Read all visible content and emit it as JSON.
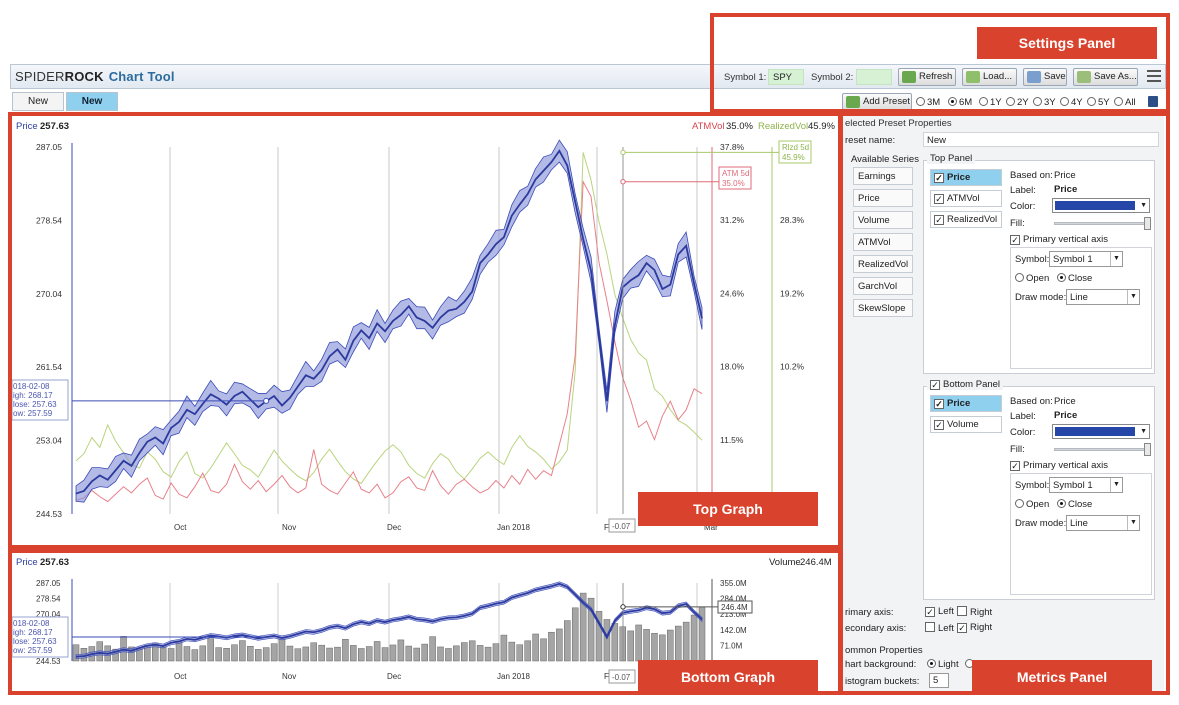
{
  "app": {
    "brand_part1": "SPIDER",
    "brand_part2": "ROCK",
    "brand_part3": "Chart Tool"
  },
  "tabs": [
    {
      "label": "New",
      "active": false
    },
    {
      "label": "New",
      "active": true
    }
  ],
  "settings": {
    "symbol1_label": "Symbol 1:",
    "symbol1_value": "SPY",
    "symbol2_label": "Symbol 2:",
    "symbol2_value": "",
    "refresh_label": "Refresh",
    "load_label": "Load...",
    "save_label": "Save",
    "save_as_label": "Save As...",
    "add_preset_label": "Add Preset",
    "ranges": [
      "3M",
      "6M",
      "1Y",
      "2Y",
      "3Y",
      "4Y",
      "5Y",
      "All"
    ],
    "selected_range": "6M"
  },
  "top_graph": {
    "left_label": "Price",
    "left_value": "257.63",
    "atm_label": "ATMVol",
    "atm_value": "35.0%",
    "rv_label": "RealizedVol",
    "rv_value": "45.9%",
    "atm_tag_line1": "ATM 5d",
    "atm_tag_line2": "35.0%",
    "rv_tag_line1": "Rlzd 5d",
    "rv_tag_line2": "45.9%",
    "crosshair_value": "-0.07",
    "tooltip": {
      "date": "018-02-08",
      "high": "igh:  268.17",
      "close": "lose: 257.63",
      "low": "ow:   257.59"
    }
  },
  "bottom_graph": {
    "left_label": "Price",
    "left_value": "257.63",
    "right_label": "Volume",
    "right_value": "246.4M",
    "volume_tag": "246.4M",
    "crosshair_value": "-0.07",
    "tooltip": {
      "date": "018-02-08",
      "high": "igh:  268.17",
      "close": "lose: 257.63",
      "low": "ow:   257.59"
    }
  },
  "chart_data": [
    {
      "type": "line",
      "title": "Top Graph",
      "x_ticks": [
        "Oct",
        "Nov",
        "Dec",
        "Jan 2018",
        "F",
        "Mar"
      ],
      "y_left_ticks": [
        "287.05",
        "278.54",
        "270.04",
        "261.54",
        "253.04",
        "244.53"
      ],
      "y_right1_ticks": [
        "37.8%",
        "31.2%",
        "24.6%",
        "18.0%",
        "11.5%"
      ],
      "y_right2_ticks": [
        "37.3%",
        "28.3%",
        "19.2%",
        "10.2%"
      ],
      "ylim_price": [
        244.53,
        287.05
      ],
      "ylim_atm": [
        8.2,
        37.8
      ],
      "ylim_rv": [
        5.7,
        46.5
      ],
      "grid": true,
      "series": [
        {
          "name": "Price",
          "color": "#3b4cb8",
          "values": [
            246.9,
            247.2,
            248.3,
            249.0,
            248.5,
            249.6,
            250.7,
            250.1,
            251.6,
            252.9,
            253.4,
            252.7,
            254.5,
            255.2,
            256.6,
            256.1,
            257.3,
            258.4,
            257.9,
            257.2,
            258.2,
            258.7,
            257.8,
            256.9,
            257.6,
            258.2,
            257.1,
            258.0,
            259.3,
            260.6,
            260.2,
            261.2,
            262.8,
            263.6,
            262.4,
            264.6,
            265.8,
            264.9,
            266.6,
            265.7,
            266.9,
            267.6,
            268.6,
            267.3,
            266.9,
            266.1,
            267.3,
            268.1,
            268.3,
            269.1,
            270.3,
            273.6,
            274.6,
            275.8,
            276.6,
            279.1,
            280.4,
            281.6,
            283.3,
            284.3,
            285.3,
            286.6,
            284.9,
            280.7,
            276.4,
            272.7,
            265.2,
            257.6,
            266.4,
            270.8,
            271.6,
            272.2,
            273.6,
            272.8,
            270.6,
            271.1,
            274.6,
            275.6,
            271.2,
            267.2
          ]
        },
        {
          "name": "ATMVol",
          "color": "#e06b78",
          "values": [
            9.3,
            9.5,
            10.1,
            9.6,
            9.2,
            9.8,
            10.4,
            9.9,
            10.6,
            11.1,
            9.7,
            9.4,
            10.7,
            9.8,
            9.5,
            10.4,
            11.5,
            10.1,
            9.9,
            10.6,
            12.2,
            10.8,
            10.2,
            10.9,
            10.0,
            10.6,
            11.3,
            10.4,
            9.9,
            10.3,
            13.4,
            10.6,
            10.1,
            9.8,
            10.7,
            11.6,
            10.2,
            9.9,
            10.6,
            9.5,
            9.9,
            10.8,
            11.2,
            10.3,
            10.1,
            11.7,
            10.5,
            9.8,
            10.6,
            11.0,
            10.4,
            9.9,
            10.2,
            10.9,
            10.3,
            11.3,
            10.6,
            11.8,
            11.0,
            11.7,
            11.3,
            13.8,
            16.3,
            21.0,
            35.0,
            33.8,
            28.5,
            25.4,
            22.1,
            19.2,
            17.4,
            15.2,
            15.7,
            14.2,
            16.1,
            17.3,
            15.8,
            16.6,
            18.3,
            17.9
          ]
        },
        {
          "name": "RealizedVol",
          "color": "#a9c96b",
          "values": [
            11.6,
            12.4,
            14.2,
            13.1,
            15.6,
            13.8,
            12.5,
            11.2,
            10.8,
            12.6,
            11.8,
            10.4,
            9.8,
            11.5,
            12.6,
            10.2,
            9.7,
            10.8,
            12.2,
            13.6,
            12.4,
            11.1,
            10.6,
            9.8,
            11.3,
            12.8,
            11.6,
            10.7,
            9.9,
            9.4,
            10.3,
            11.8,
            12.9,
            11.6,
            10.4,
            9.6,
            9.1,
            10.4,
            11.6,
            12.7,
            13.4,
            12.6,
            11.1,
            10.2,
            9.7,
            11.3,
            12.4,
            11.8,
            10.4,
            9.6,
            10.7,
            11.9,
            12.6,
            11.8,
            11.2,
            13.1,
            14.4,
            13.2,
            12.6,
            11.8,
            10.7,
            11.5,
            12.8,
            21.6,
            45.9,
            42.8,
            38.2,
            34.6,
            30.1,
            27.5,
            25.1,
            23.6,
            22.8,
            19.6,
            18.8,
            17.3,
            16.1,
            15.6,
            14.8,
            13.9
          ]
        }
      ]
    },
    {
      "type": "bar",
      "title": "Bottom Graph",
      "x_ticks": [
        "Oct",
        "Nov",
        "Dec",
        "Jan 2018",
        "F",
        "Mar"
      ],
      "y_left_ticks": [
        "287.05",
        "278.54",
        "270.04",
        "261.54",
        "253.04",
        "244.53"
      ],
      "y_right_ticks": [
        "355.0M",
        "284.0M",
        "213.0M",
        "142.0M",
        "71.0M"
      ],
      "ylim_volume": [
        0,
        355
      ],
      "series": [
        {
          "name": "Volume",
          "color": "#9a9a9a",
          "unit": "M",
          "values": [
            74,
            58,
            66,
            88,
            69,
            54,
            112,
            64,
            59,
            71,
            82,
            63,
            57,
            91,
            66,
            52,
            69,
            101,
            61,
            58,
            74,
            93,
            67,
            53,
            61,
            79,
            107,
            68,
            56,
            64,
            83,
            72,
            59,
            63,
            99,
            71,
            57,
            66,
            89,
            61,
            73,
            96,
            68,
            59,
            77,
            111,
            64,
            57,
            69,
            84,
            92,
            71,
            63,
            79,
            118,
            86,
            74,
            92,
            123,
            101,
            131,
            146,
            184,
            242,
            309,
            286,
            226,
            189,
            171,
            156,
            137,
            164,
            144,
            126,
            119,
            141,
            159,
            177,
            209,
            246.4
          ]
        },
        {
          "name": "Price",
          "color": "#3b4cb8",
          "values_ref": "same as top graph Price"
        }
      ]
    }
  ],
  "metrics": {
    "header": "elected Preset Properties",
    "preset_name_label": "reset name:",
    "preset_name_value": "New",
    "available_label": "Available Series",
    "available": [
      "Earnings",
      "Price",
      "Volume",
      "ATMVol",
      "RealizedVol",
      "GarchVol",
      "SkewSlope"
    ],
    "top_panel": {
      "title": "Top Panel",
      "items": [
        {
          "label": "Price",
          "checked": true,
          "selected": true
        },
        {
          "label": "ATMVol",
          "checked": true,
          "selected": false
        },
        {
          "label": "RealizedVol",
          "checked": true,
          "selected": false
        }
      ],
      "based_on_label": "Based on:",
      "based_on_value": "Price",
      "label_label": "Label:",
      "label_value": "Price",
      "color_label": "Color:",
      "color_value": "#2646a8",
      "fill_label": "Fill:",
      "primary_axis_label": "Primary vertical axis",
      "symbol_label": "Symbol:",
      "symbol_value": "Symbol 1",
      "open_label": "Open",
      "close_label": "Close",
      "draw_mode_label": "Draw mode:",
      "draw_mode_value": "Line"
    },
    "bottom_panel": {
      "title": "Bottom Panel",
      "items": [
        {
          "label": "Price",
          "checked": true,
          "selected": true
        },
        {
          "label": "Volume",
          "checked": true,
          "selected": false
        }
      ],
      "based_on_label": "Based on:",
      "based_on_value": "Price",
      "label_label": "Label:",
      "label_value": "Price",
      "color_label": "Color:",
      "color_value": "#2646a8",
      "fill_label": "Fill:",
      "primary_axis_label": "Primary vertical axis",
      "symbol_label": "Symbol:",
      "symbol_value": "Symbol 1",
      "open_label": "Open",
      "close_label": "Close",
      "draw_mode_label": "Draw mode:",
      "draw_mode_value": "Line"
    },
    "primary_axis_label": "rimary axis:",
    "secondary_axis_label": "econdary axis:",
    "left_label": "Left",
    "right_label": "Right",
    "common_label": "ommon Properties",
    "chart_bg_label": "hart background:",
    "chart_bg_value": "Light",
    "histogram_label": "istogram buckets:",
    "histogram_value": "5"
  },
  "annotations": {
    "settings_panel": "Settings Panel",
    "top_graph": "Top Graph",
    "bottom_graph": "Bottom Graph",
    "metrics_panel": "Metrics Panel",
    "accent_color": "#d9422c"
  }
}
